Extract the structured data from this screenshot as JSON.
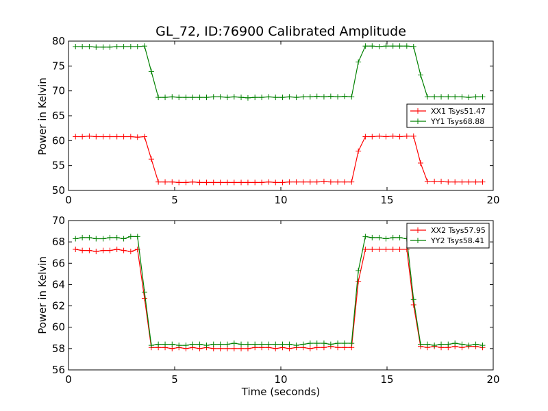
{
  "figure": {
    "title": "GL_72, ID:76900 Calibrated Amplitude",
    "xlabel": "Time (seconds)"
  },
  "chart_data": [
    {
      "type": "line",
      "ylabel": "Power in Kelvin",
      "xlim": [
        0,
        20
      ],
      "ylim": [
        50,
        80
      ],
      "xticks": [
        0,
        5,
        10,
        15,
        20
      ],
      "yticks": [
        50,
        55,
        60,
        65,
        70,
        75,
        80
      ],
      "legend_position": "right",
      "grid": false,
      "x": [
        0.33,
        0.65,
        0.98,
        1.3,
        1.63,
        1.95,
        2.28,
        2.6,
        2.93,
        3.25,
        3.58,
        3.9,
        4.23,
        4.55,
        4.88,
        5.2,
        5.53,
        5.85,
        6.18,
        6.5,
        6.83,
        7.15,
        7.48,
        7.8,
        8.13,
        8.45,
        8.78,
        9.1,
        9.43,
        9.75,
        10.08,
        10.4,
        10.73,
        11.05,
        11.38,
        11.7,
        12.03,
        12.35,
        12.68,
        13.0,
        13.33,
        13.65,
        13.98,
        14.3,
        14.63,
        14.95,
        15.28,
        15.6,
        15.93,
        16.25,
        16.58,
        16.9,
        17.23,
        17.55,
        17.88,
        18.2,
        18.53,
        18.85,
        19.18,
        19.5
      ],
      "series": [
        {
          "name": "XX1 Tsys51.47",
          "color": "#ff0000",
          "values": [
            60.8,
            60.8,
            60.9,
            60.8,
            60.8,
            60.8,
            60.8,
            60.8,
            60.8,
            60.7,
            60.8,
            56.3,
            51.7,
            51.7,
            51.7,
            51.6,
            51.6,
            51.7,
            51.6,
            51.6,
            51.6,
            51.6,
            51.6,
            51.6,
            51.6,
            51.6,
            51.6,
            51.6,
            51.7,
            51.6,
            51.6,
            51.7,
            51.7,
            51.7,
            51.7,
            51.7,
            51.8,
            51.7,
            51.7,
            51.7,
            51.7,
            57.9,
            60.8,
            60.8,
            60.9,
            60.8,
            60.9,
            60.8,
            60.9,
            60.9,
            55.5,
            51.8,
            51.8,
            51.8,
            51.7,
            51.7,
            51.7,
            51.7,
            51.7,
            51.7
          ]
        },
        {
          "name": "YY1 Tsys68.88",
          "color": "#008000",
          "values": [
            78.9,
            78.9,
            78.9,
            78.8,
            78.8,
            78.8,
            78.9,
            78.9,
            78.9,
            78.9,
            79.0,
            73.9,
            68.7,
            68.7,
            68.8,
            68.7,
            68.7,
            68.7,
            68.7,
            68.7,
            68.8,
            68.8,
            68.7,
            68.8,
            68.7,
            68.6,
            68.7,
            68.7,
            68.8,
            68.7,
            68.7,
            68.8,
            68.7,
            68.8,
            68.8,
            68.9,
            68.8,
            68.9,
            68.8,
            68.9,
            68.8,
            75.8,
            79.0,
            79.0,
            78.9,
            79.0,
            79.0,
            79.0,
            79.0,
            78.9,
            73.2,
            68.8,
            68.8,
            68.8,
            68.8,
            68.8,
            68.8,
            68.7,
            68.8,
            68.8
          ]
        }
      ]
    },
    {
      "type": "line",
      "ylabel": "Power in Kelvin",
      "xlim": [
        0,
        20
      ],
      "ylim": [
        56,
        70
      ],
      "xticks": [
        0,
        5,
        10,
        15,
        20
      ],
      "yticks": [
        56,
        58,
        60,
        62,
        64,
        66,
        68,
        70
      ],
      "legend_position": "top-right",
      "grid": false,
      "x": [
        0.33,
        0.65,
        0.98,
        1.3,
        1.63,
        1.95,
        2.28,
        2.6,
        2.93,
        3.25,
        3.58,
        3.9,
        4.23,
        4.55,
        4.88,
        5.2,
        5.53,
        5.85,
        6.18,
        6.5,
        6.83,
        7.15,
        7.48,
        7.8,
        8.13,
        8.45,
        8.78,
        9.1,
        9.43,
        9.75,
        10.08,
        10.4,
        10.73,
        11.05,
        11.38,
        11.7,
        12.03,
        12.35,
        12.68,
        13.0,
        13.33,
        13.65,
        13.98,
        14.3,
        14.63,
        14.95,
        15.28,
        15.6,
        15.93,
        16.25,
        16.58,
        16.9,
        17.23,
        17.55,
        17.88,
        18.2,
        18.53,
        18.85,
        19.18,
        19.5
      ],
      "series": [
        {
          "name": "XX2 Tsys57.95",
          "color": "#ff0000",
          "values": [
            67.3,
            67.2,
            67.2,
            67.1,
            67.2,
            67.2,
            67.3,
            67.2,
            67.1,
            67.3,
            62.7,
            58.1,
            58.1,
            58.1,
            58.0,
            58.1,
            58.0,
            58.1,
            58.0,
            58.1,
            58.0,
            58.0,
            58.0,
            58.0,
            58.0,
            58.0,
            58.1,
            58.1,
            58.1,
            58.0,
            58.1,
            58.0,
            58.1,
            58.1,
            58.0,
            58.1,
            58.1,
            58.2,
            58.1,
            58.1,
            58.1,
            64.3,
            67.3,
            67.3,
            67.3,
            67.3,
            67.3,
            67.3,
            67.3,
            62.1,
            58.2,
            58.1,
            58.2,
            58.1,
            58.1,
            58.2,
            58.1,
            58.2,
            58.2,
            58.1
          ]
        },
        {
          "name": "YY2 Tsys58.41",
          "color": "#008000",
          "values": [
            68.3,
            68.4,
            68.4,
            68.3,
            68.3,
            68.4,
            68.4,
            68.3,
            68.5,
            68.5,
            63.3,
            58.3,
            58.4,
            58.4,
            58.4,
            58.3,
            58.3,
            58.4,
            58.4,
            58.3,
            58.4,
            58.4,
            58.4,
            58.5,
            58.4,
            58.4,
            58.4,
            58.4,
            58.4,
            58.4,
            58.4,
            58.4,
            58.3,
            58.4,
            58.5,
            58.5,
            58.5,
            58.4,
            58.5,
            58.5,
            58.5,
            65.3,
            68.5,
            68.4,
            68.4,
            68.3,
            68.4,
            68.4,
            68.3,
            62.6,
            58.4,
            58.4,
            58.3,
            58.4,
            58.4,
            58.5,
            58.4,
            58.3,
            58.4,
            58.3
          ]
        }
      ]
    }
  ]
}
